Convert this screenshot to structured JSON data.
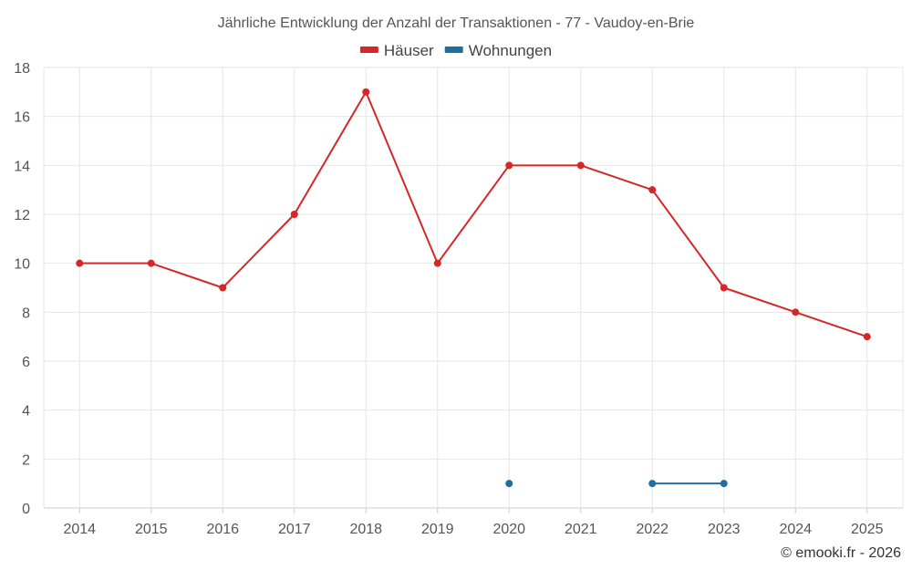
{
  "chart_data": {
    "type": "line",
    "title": "Jährliche Entwicklung der Anzahl der Transaktionen - 77 - Vaudoy-en-Brie",
    "categories": [
      "2014",
      "2015",
      "2016",
      "2017",
      "2018",
      "2019",
      "2020",
      "2021",
      "2022",
      "2023",
      "2024",
      "2025"
    ],
    "ylim": [
      0,
      18
    ],
    "yticks": [
      0,
      2,
      4,
      6,
      8,
      10,
      12,
      14,
      16,
      18
    ],
    "grid": true,
    "legend_position": "top-center",
    "series": [
      {
        "name": "Häuser",
        "color": "#d62728",
        "values": [
          10,
          10,
          9,
          12,
          17,
          10,
          14,
          14,
          13,
          9,
          8,
          7
        ]
      },
      {
        "name": "Wohnungen",
        "color": "#1f6ea3",
        "values": [
          null,
          null,
          null,
          null,
          null,
          null,
          1,
          null,
          1,
          1,
          null,
          null
        ]
      }
    ]
  },
  "credit": "© emooki.fr - 2026"
}
